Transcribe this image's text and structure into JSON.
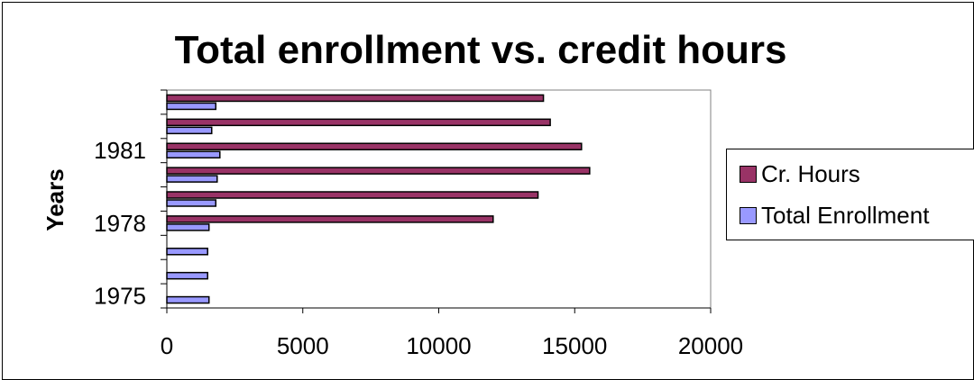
{
  "chart_data": {
    "type": "bar",
    "orientation": "horizontal",
    "title": "Total enrollment vs. credit hours",
    "xlabel": "",
    "ylabel": "Years",
    "xlim": [
      0,
      20000
    ],
    "x_ticks": [
      "0",
      "5000",
      "10000",
      "15000",
      "20000"
    ],
    "y_tick_labels": [
      "1975",
      "1978",
      "1981"
    ],
    "categories": [
      "1975",
      "1976",
      "1977",
      "1978",
      "1979",
      "1980",
      "1981",
      "1982",
      "1983"
    ],
    "series": [
      {
        "name": "Total Enrollment",
        "color": "#9999FF",
        "values": [
          1550,
          1500,
          1500,
          1550,
          1800,
          1850,
          1950,
          1650,
          1800
        ]
      },
      {
        "name": "Cr. Hours",
        "color": "#993366",
        "values": [
          null,
          null,
          null,
          12000,
          13650,
          15550,
          15250,
          14100,
          13850
        ]
      }
    ],
    "grid": false,
    "legend_position": "right"
  }
}
